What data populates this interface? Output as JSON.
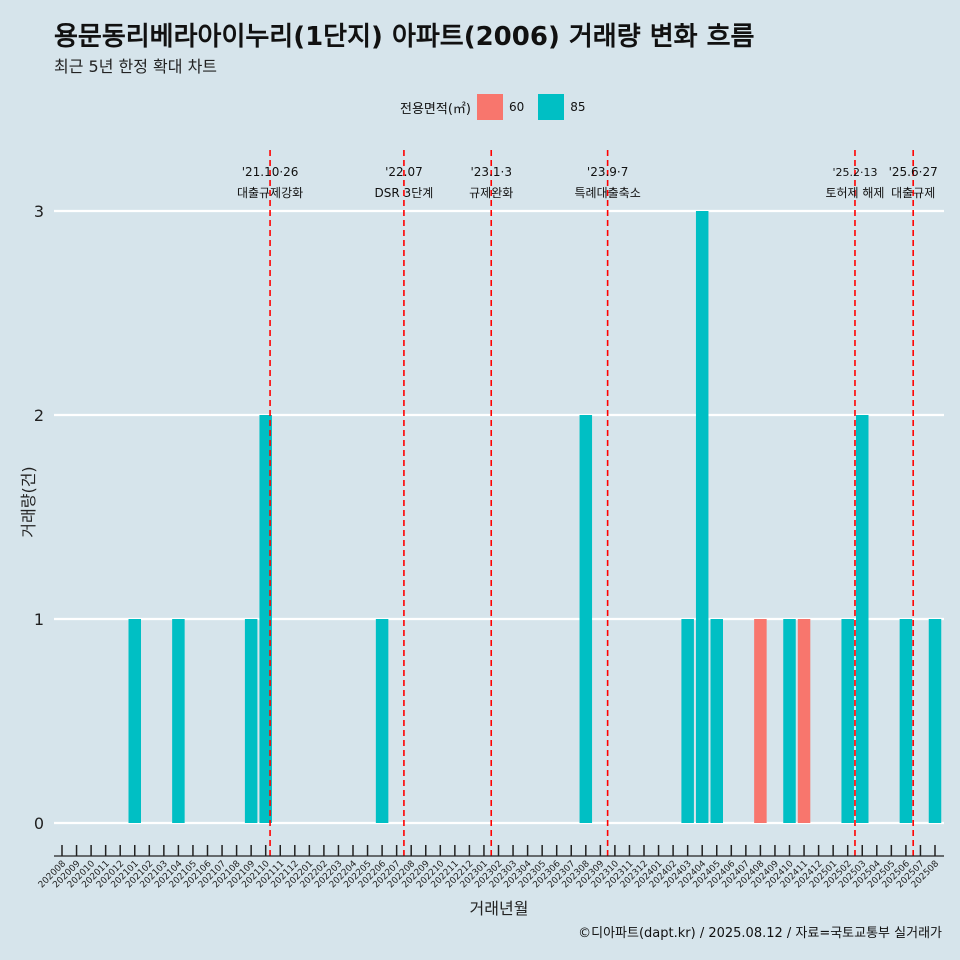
{
  "title": "용문동리베라아이누리(1단지) 아파트(2006) 거래량 변화 흐름",
  "subtitle": "최근 5년 한정 확대 차트",
  "caption": "©디아파트(dapt.kr) / 2025.08.12 / 자료=국토교통부 실거래가",
  "legend": {
    "title": "전용면적(㎡)",
    "items": [
      {
        "label": "60",
        "color": "#f8766d"
      },
      {
        "label": "85",
        "color": "#00bfc4"
      }
    ]
  },
  "chart_data": {
    "type": "bar",
    "xlabel": "거래년월",
    "ylabel": "거래량(건)",
    "ylim": [
      0,
      3
    ],
    "yticks": [
      0,
      1,
      2,
      3
    ],
    "categories": [
      "202008",
      "202009",
      "202010",
      "202011",
      "202012",
      "202101",
      "202102",
      "202103",
      "202104",
      "202105",
      "202106",
      "202107",
      "202108",
      "202109",
      "202110",
      "202111",
      "202112",
      "202201",
      "202202",
      "202203",
      "202204",
      "202205",
      "202206",
      "202207",
      "202208",
      "202209",
      "202210",
      "202211",
      "202212",
      "202301",
      "202302",
      "202303",
      "202304",
      "202305",
      "202306",
      "202307",
      "202308",
      "202309",
      "202310",
      "202311",
      "202312",
      "202401",
      "202402",
      "202403",
      "202404",
      "202405",
      "202406",
      "202407",
      "202408",
      "202409",
      "202410",
      "202411",
      "202412",
      "202501",
      "202502",
      "202503",
      "202504",
      "202505",
      "202506",
      "202507",
      "202508"
    ],
    "series": [
      {
        "name": "60",
        "color": "#f8766d",
        "values": [
          0,
          0,
          0,
          0,
          0,
          0,
          0,
          0,
          0,
          0,
          0,
          0,
          0,
          0,
          0,
          0,
          0,
          0,
          0,
          0,
          0,
          0,
          0,
          0,
          0,
          0,
          0,
          0,
          0,
          0,
          0,
          0,
          0,
          0,
          0,
          0,
          0,
          0,
          0,
          0,
          0,
          0,
          0,
          0,
          0,
          0,
          0,
          0,
          1,
          0,
          0,
          1,
          0,
          0,
          0,
          0,
          0,
          0,
          0,
          0,
          0
        ]
      },
      {
        "name": "85",
        "color": "#00bfc4",
        "values": [
          0,
          0,
          0,
          0,
          0,
          1,
          0,
          0,
          1,
          0,
          0,
          0,
          0,
          1,
          2,
          0,
          0,
          0,
          0,
          0,
          0,
          0,
          1,
          0,
          0,
          0,
          0,
          0,
          0,
          0,
          0,
          0,
          0,
          0,
          0,
          0,
          2,
          0,
          0,
          0,
          0,
          0,
          0,
          1,
          3,
          1,
          0,
          0,
          0,
          0,
          1,
          0,
          0,
          0,
          1,
          2,
          0,
          0,
          1,
          0,
          1
        ]
      }
    ],
    "annotations": [
      {
        "date": "'21.10·26",
        "label": "대출규제강화",
        "index": 14.3
      },
      {
        "date": "'22.07",
        "label": "DSR 3단계",
        "index": 23.5
      },
      {
        "date": "'23.1·3",
        "label": "규제완화",
        "index": 29.5
      },
      {
        "date": "'23.9·7",
        "label": "특례대출축소",
        "index": 37.5
      },
      {
        "date": "'25.2·13",
        "label": "토허제 해제",
        "index": 54.5
      },
      {
        "date": "'25.6·27",
        "label": "대출규제",
        "index": 58.5
      }
    ]
  }
}
